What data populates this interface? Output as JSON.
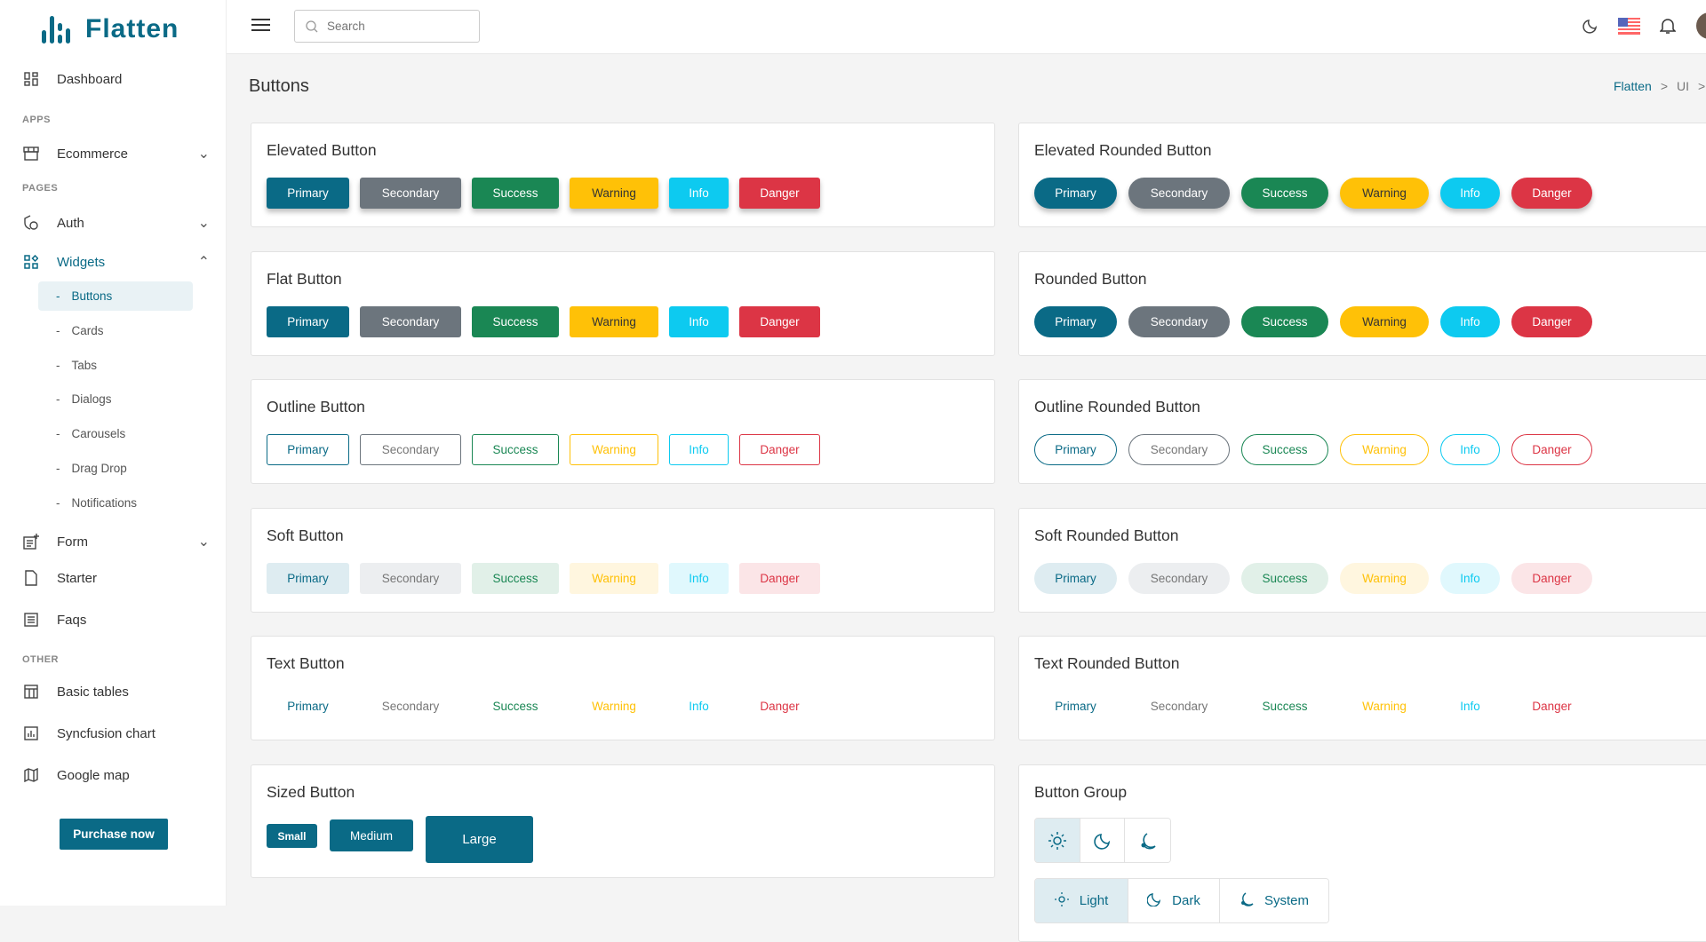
{
  "colors": {
    "primary": "#0a6a86",
    "secondary": "#6c757d",
    "success": "#1a8754",
    "warning": "#ffc107",
    "info": "#0dcaf0",
    "danger": "#dc3545"
  },
  "app": {
    "name": "Flatten"
  },
  "header": {
    "search_placeholder": "Search",
    "icons": [
      "menu-icon",
      "moon-icon",
      "us-flag-icon",
      "bell-icon",
      "avatar"
    ]
  },
  "sidebar": {
    "items": [
      {
        "label": "Dashboard",
        "icon": "dashboard-icon"
      },
      {
        "section": "APPS"
      },
      {
        "label": "Ecommerce",
        "icon": "store-icon",
        "chevron": "down"
      },
      {
        "section": "PAGES"
      },
      {
        "label": "Auth",
        "icon": "shield-lock-icon",
        "chevron": "down"
      },
      {
        "label": "Widgets",
        "icon": "widgets-icon",
        "chevron": "up",
        "active": true,
        "children": [
          {
            "label": "Buttons",
            "active": true
          },
          {
            "label": "Cards"
          },
          {
            "label": "Tabs"
          },
          {
            "label": "Dialogs"
          },
          {
            "label": "Carousels"
          },
          {
            "label": "Drag Drop"
          },
          {
            "label": "Notifications"
          }
        ]
      },
      {
        "label": "Form",
        "icon": "form-add-icon",
        "chevron": "down"
      },
      {
        "label": "Starter",
        "icon": "file-icon"
      },
      {
        "label": "Faqs",
        "icon": "list-icon"
      },
      {
        "section": "OTHER"
      },
      {
        "label": "Basic tables",
        "icon": "table-icon"
      },
      {
        "label": "Syncfusion chart",
        "icon": "chart-icon"
      },
      {
        "label": "Google map",
        "icon": "map-icon"
      }
    ],
    "purchase_label": "Purchase now"
  },
  "page": {
    "title": "Buttons",
    "breadcrumb": [
      "Flatten",
      "UI"
    ]
  },
  "variants": [
    "Primary",
    "Secondary",
    "Success",
    "Warning",
    "Info",
    "Danger"
  ],
  "cards": [
    {
      "title": "Elevated Button",
      "style": "elevated",
      "rounded": false
    },
    {
      "title": "Elevated Rounded Button",
      "style": "elevated",
      "rounded": true
    },
    {
      "title": "Flat Button",
      "style": "flat",
      "rounded": false
    },
    {
      "title": "Rounded Button",
      "style": "flat",
      "rounded": true
    },
    {
      "title": "Outline Button",
      "style": "outline",
      "rounded": false
    },
    {
      "title": "Outline Rounded Button",
      "style": "outline",
      "rounded": true
    },
    {
      "title": "Soft Button",
      "style": "soft",
      "rounded": false
    },
    {
      "title": "Soft Rounded Button",
      "style": "soft",
      "rounded": true
    },
    {
      "title": "Text Button",
      "style": "text",
      "rounded": false
    },
    {
      "title": "Text Rounded Button",
      "style": "text",
      "rounded": true
    }
  ],
  "sized": {
    "title": "Sized Button",
    "buttons": [
      "Small",
      "Medium",
      "Large"
    ]
  },
  "group": {
    "title": "Button Group",
    "icon_buttons": [
      "sun-icon",
      "moon-icon",
      "system-icon"
    ],
    "labeled": [
      {
        "label": "Light",
        "icon": "sun-icon",
        "selected": true
      },
      {
        "label": "Dark",
        "icon": "moon-icon"
      },
      {
        "label": "System",
        "icon": "system-icon"
      }
    ]
  }
}
